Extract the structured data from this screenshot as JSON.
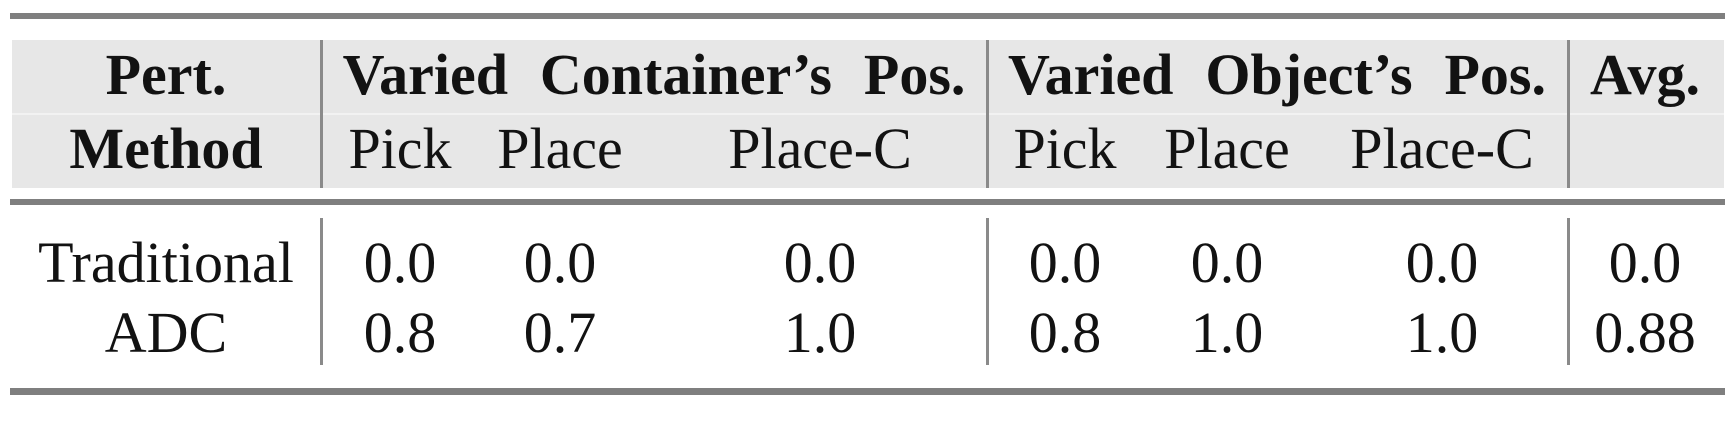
{
  "colors": {
    "page_bg": "#ffffff",
    "header_bg": "#e7e7e7",
    "header_sep": "#f2f2f2",
    "rule": "#7f7f7f",
    "divider": "#8a8a8a",
    "text": "#121212"
  },
  "header": {
    "col1_line1": "Pert.",
    "col1_line2": "Method",
    "group_container": "Varied Container’s Pos.",
    "group_object": "Varied Object’s Pos.",
    "avg": "Avg.",
    "subcols": [
      "Pick",
      "Place",
      "Place-C"
    ]
  },
  "rows": [
    {
      "method": "Traditional",
      "container": [
        "0.0",
        "0.0",
        "0.0"
      ],
      "object": [
        "0.0",
        "0.0",
        "0.0"
      ],
      "avg": "0.0"
    },
    {
      "method": "ADC",
      "container": [
        "0.8",
        "0.7",
        "1.0"
      ],
      "object": [
        "0.8",
        "1.0",
        "1.0"
      ],
      "avg": "0.88"
    }
  ]
}
